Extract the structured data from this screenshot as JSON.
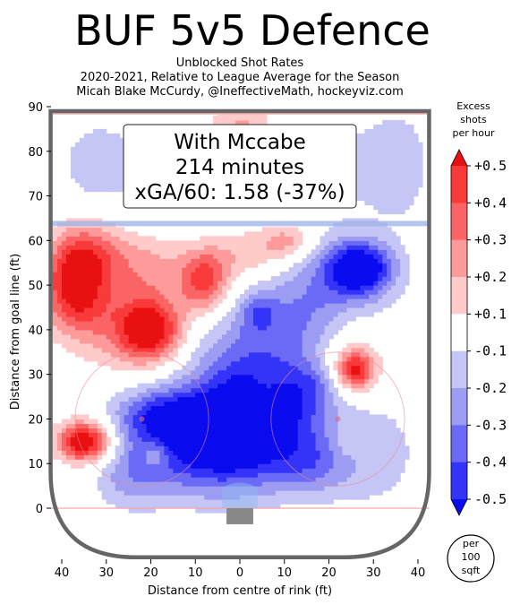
{
  "chart_data": {
    "type": "heatmap",
    "title": "BUF 5v5 Defence",
    "subtitle_lines": [
      "Unblocked Shot Rates",
      "2020-2021, Relative to League Average for the Season",
      "Micah Blake McCurdy, @IneffectiveMath, hockeyviz.com"
    ],
    "annotation_lines": [
      "With Mccabe",
      "214 minutes",
      "xGA/60: 1.58 (-37%)"
    ],
    "xlabel": "Distance from centre of rink (ft)",
    "ylabel": "Distance from goal line (ft)",
    "xlim": [
      -42,
      42
    ],
    "ylim": [
      -11,
      90
    ],
    "x_ticks": [
      {
        "value": -40,
        "label": "40"
      },
      {
        "value": -30,
        "label": "30"
      },
      {
        "value": -20,
        "label": "20"
      },
      {
        "value": -10,
        "label": "10"
      },
      {
        "value": 0,
        "label": "0"
      },
      {
        "value": 10,
        "label": "10"
      },
      {
        "value": 20,
        "label": "20"
      },
      {
        "value": 30,
        "label": "30"
      },
      {
        "value": 40,
        "label": "40"
      }
    ],
    "y_ticks": [
      {
        "value": 0,
        "label": "0"
      },
      {
        "value": 10,
        "label": "10"
      },
      {
        "value": 20,
        "label": "20"
      },
      {
        "value": 30,
        "label": "30"
      },
      {
        "value": 40,
        "label": "40"
      },
      {
        "value": 50,
        "label": "50"
      },
      {
        "value": 60,
        "label": "60"
      },
      {
        "value": 70,
        "label": "70"
      },
      {
        "value": 80,
        "label": "80"
      },
      {
        "value": 90,
        "label": "90"
      }
    ],
    "colorbar": {
      "title_lines": [
        "Excess",
        "shots",
        "per hour"
      ],
      "range": [
        -0.5,
        0.5
      ],
      "levels": [
        -0.5,
        -0.4,
        -0.3,
        -0.2,
        -0.1,
        0.1,
        0.2,
        0.3,
        0.4,
        0.5
      ],
      "tick_labels": [
        "+0.5",
        "+0.4",
        "+0.3",
        "+0.2",
        "+0.1",
        "-0.1",
        "-0.2",
        "-0.3",
        "-0.4",
        "-0.5"
      ],
      "colors": [
        "#0b0bf0",
        "#3434f8",
        "#6a6af6",
        "#9c9cf3",
        "#c6c6f6",
        "#ffffff",
        "#ffcaca",
        "#fd9a9a",
        "#fb6464",
        "#f83a3a",
        "#e81010"
      ],
      "units_lines": [
        "per",
        "100",
        "sqft"
      ]
    },
    "blobs": [
      {
        "x": -32,
        "y": 77,
        "sx": 7,
        "sy": 8,
        "v": -0.15
      },
      {
        "x": -10,
        "y": 77,
        "sx": 9,
        "sy": 7,
        "v": -0.15
      },
      {
        "x": 20,
        "y": 77,
        "sx": 10,
        "sy": 8,
        "v": -0.15
      },
      {
        "x": 36,
        "y": 77,
        "sx": 5,
        "sy": 9,
        "v": -0.15
      },
      {
        "x": 0,
        "y": 86,
        "sx": 6,
        "sy": 4,
        "v": 0.25
      },
      {
        "x": -37,
        "y": 50,
        "sx": 5,
        "sy": 7,
        "v": 0.55
      },
      {
        "x": -33,
        "y": 58,
        "sx": 6,
        "sy": 5,
        "v": 0.25
      },
      {
        "x": -20,
        "y": 40,
        "sx": 5,
        "sy": 5,
        "v": 0.6
      },
      {
        "x": -8,
        "y": 51,
        "sx": 4,
        "sy": 5,
        "v": 0.45
      },
      {
        "x": -20,
        "y": 54,
        "sx": 6,
        "sy": 5,
        "v": 0.2
      },
      {
        "x": 2,
        "y": 57,
        "sx": 6,
        "sy": 4,
        "v": 0.2
      },
      {
        "x": 11,
        "y": 60,
        "sx": 4,
        "sy": 3,
        "v": 0.25
      },
      {
        "x": -28,
        "y": 42,
        "sx": 7,
        "sy": 8,
        "v": 0.2
      },
      {
        "x": 27,
        "y": 54,
        "sx": 5,
        "sy": 4,
        "v": -0.55
      },
      {
        "x": 23,
        "y": 52,
        "sx": 9,
        "sy": 7,
        "v": -0.2
      },
      {
        "x": 12,
        "y": 42,
        "sx": 10,
        "sy": 8,
        "v": -0.25
      },
      {
        "x": 4,
        "y": 44,
        "sx": 3,
        "sy": 3,
        "v": -0.2
      },
      {
        "x": 26,
        "y": 31,
        "sx": 3,
        "sy": 3,
        "v": 0.45
      },
      {
        "x": 25,
        "y": 33,
        "sx": 5,
        "sy": 7,
        "v": 0.2
      },
      {
        "x": 17,
        "y": 28,
        "sx": 3,
        "sy": 3,
        "v": -0.1
      },
      {
        "x": -35,
        "y": 15,
        "sx": 4,
        "sy": 3,
        "v": 0.55
      },
      {
        "x": -33,
        "y": 15,
        "sx": 6,
        "sy": 5,
        "v": 0.15
      },
      {
        "x": -4,
        "y": 15,
        "sx": 13,
        "sy": 8,
        "v": -0.7
      },
      {
        "x": -18,
        "y": 21,
        "sx": 8,
        "sy": 4,
        "v": -0.3
      },
      {
        "x": 8,
        "y": 25,
        "sx": 10,
        "sy": 6,
        "v": -0.35
      },
      {
        "x": 0,
        "y": 33,
        "sx": 9,
        "sy": 7,
        "v": -0.2
      },
      {
        "x": 30,
        "y": 12,
        "sx": 8,
        "sy": 9,
        "v": -0.15
      },
      {
        "x": 16,
        "y": 10,
        "sx": 6,
        "sy": 5,
        "v": -0.2
      },
      {
        "x": -25,
        "y": 8,
        "sx": 6,
        "sy": 6,
        "v": -0.2
      },
      {
        "x": 6,
        "y": 29,
        "sx": 2.5,
        "sy": 2.5,
        "v": 0.15
      },
      {
        "x": -19,
        "y": 12,
        "sx": 2,
        "sy": 2,
        "v": 0.2
      },
      {
        "x": 24,
        "y": 15,
        "sx": 3,
        "sy": 3,
        "v": 0.1
      }
    ]
  }
}
